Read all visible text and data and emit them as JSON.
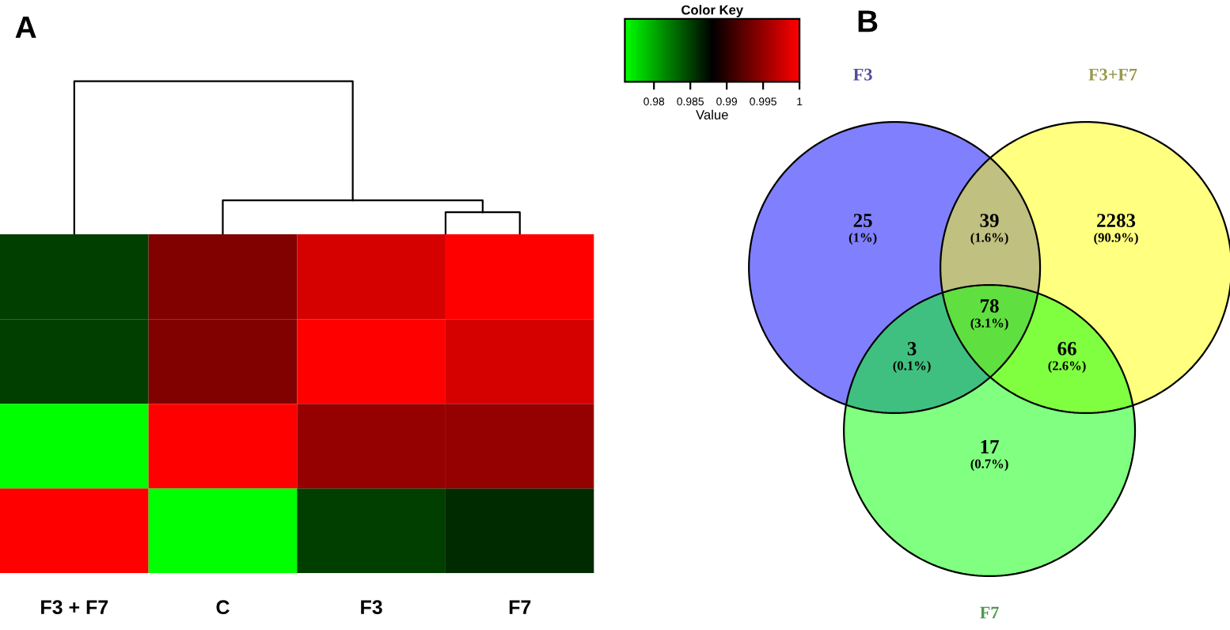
{
  "chart_data": [
    {
      "type": "heatmap",
      "title": "A",
      "legend_title": "Color Key",
      "clabel": "Value",
      "categories": [
        "F3 + F7",
        "C",
        "F3",
        "F7"
      ],
      "y_categories": [
        null,
        null,
        null,
        null
      ],
      "cells": [
        [
          0.985,
          0.994,
          0.998,
          1.0
        ],
        [
          0.985,
          0.994,
          1.0,
          0.998
        ],
        [
          0.976,
          1.0,
          0.995,
          0.995
        ],
        [
          1.0,
          0.976,
          0.985,
          0.986
        ]
      ],
      "clim": [
        0.976,
        1.0
      ],
      "cticks": [
        0.98,
        0.985,
        0.99,
        0.995,
        1
      ]
    },
    {
      "type": "other",
      "title": "B",
      "categories": [
        "F3",
        "F3+F7",
        "F7"
      ],
      "colors": [
        "#8080ff",
        "#ffff80",
        "#80ff80"
      ],
      "annotations": [
        "25",
        "(1%)",
        "39",
        "(1.6%)",
        "2283",
        "(90.9%)",
        "3",
        "(0.1%)",
        "78",
        "(3.1%)",
        "66",
        "(2.6%)",
        "17",
        "(0.7%)"
      ]
    }
  ]
}
